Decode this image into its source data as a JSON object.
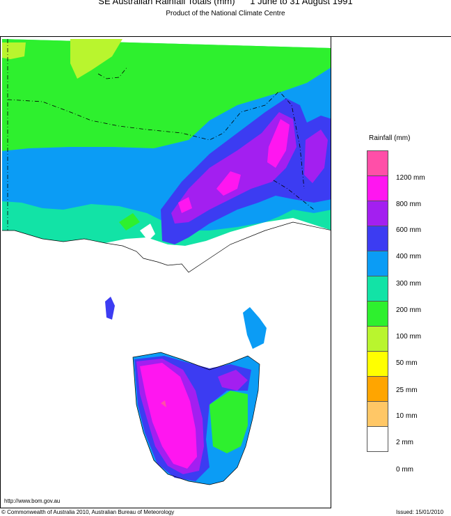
{
  "header": {
    "title": "SE Australian Rainfall Totals (mm)      1 June to 31 August 1991",
    "subtitle": "Product of the National Climate Centre"
  },
  "legend": {
    "title": "Rainfall (mm)",
    "items": [
      {
        "label": "",
        "color": "#ff4fa8"
      },
      {
        "label": "1200 mm",
        "color": "#ff16f0"
      },
      {
        "label": "800 mm",
        "color": "#a31ff0"
      },
      {
        "label": "600 mm",
        "color": "#3c3cf2"
      },
      {
        "label": "400 mm",
        "color": "#0b9cf5"
      },
      {
        "label": "300 mm",
        "color": "#12e3a6"
      },
      {
        "label": "200 mm",
        "color": "#2ef02e"
      },
      {
        "label": "100 mm",
        "color": "#b9f52e"
      },
      {
        "label": "50 mm",
        "color": "#ffff00"
      },
      {
        "label": "25 mm",
        "color": "#ffa500"
      },
      {
        "label": "10 mm",
        "color": "#ffc766"
      },
      {
        "label": "2 mm",
        "color": "#ffffff"
      },
      {
        "label": "0 mm",
        "color": ""
      }
    ]
  },
  "footer": {
    "url": "http://www.bom.gov.au",
    "copyright": "© Commonwealth of Australia 2010, Australian Bureau of Meteorology",
    "issued": "Issued: 15/01/2010"
  },
  "colors": {
    "c100": "#b9f52e",
    "c200": "#2ef02e",
    "c300": "#12e3a6",
    "c400": "#0b9cf5",
    "c600": "#3c3cf2",
    "c800": "#a31ff0",
    "c1200": "#ff16f0",
    "cmax": "#ff4fa8"
  }
}
